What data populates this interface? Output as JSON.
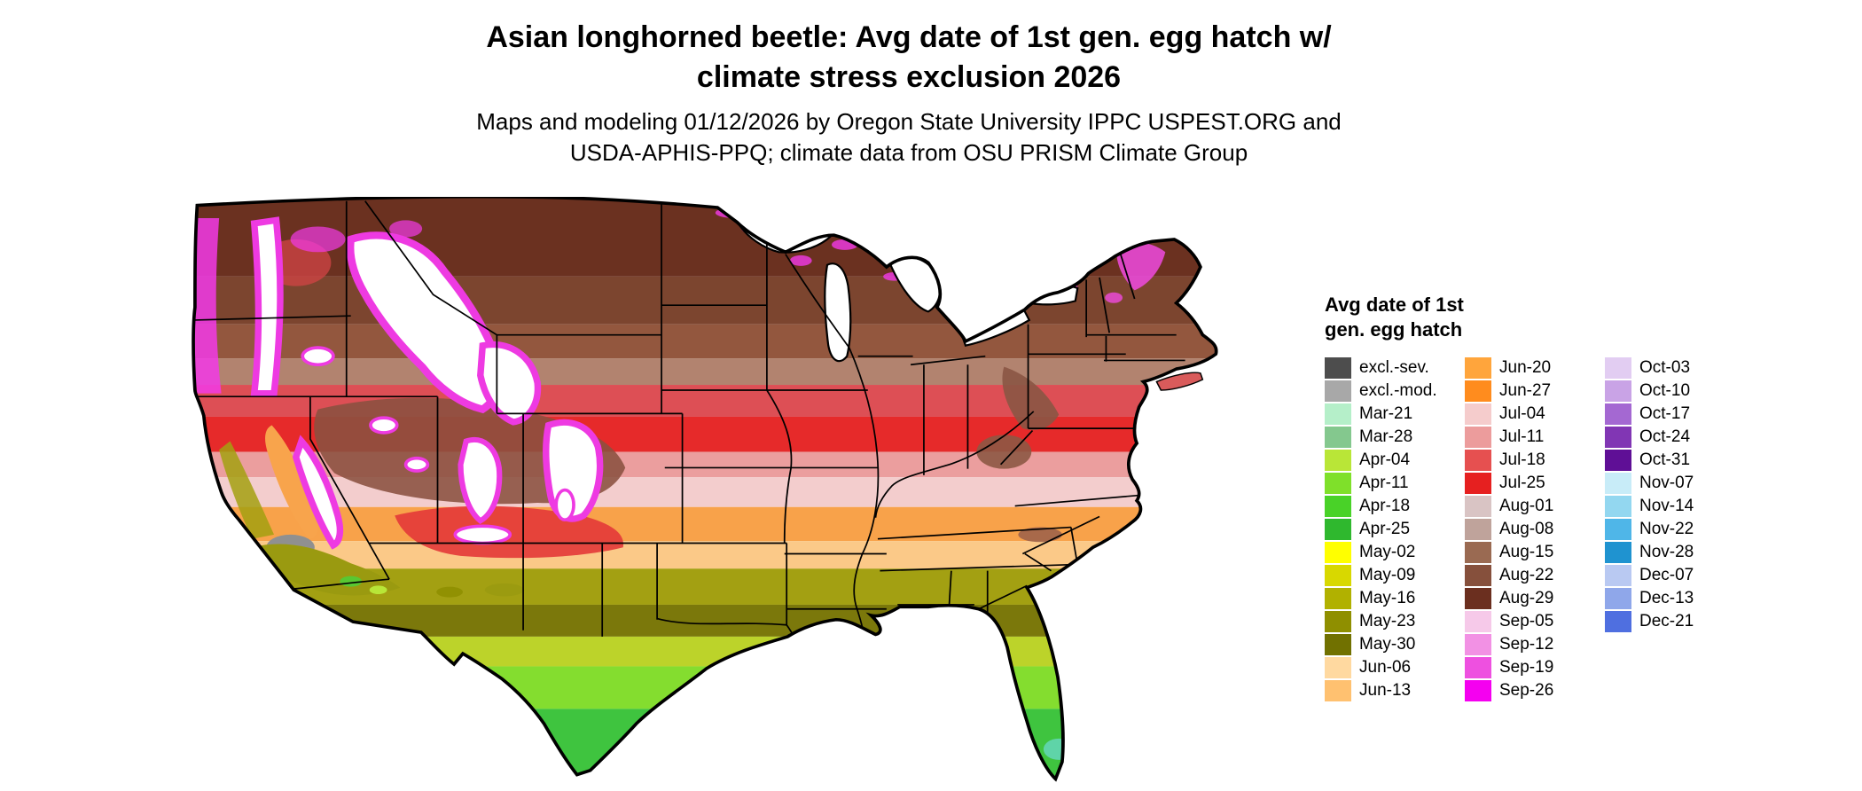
{
  "title": {
    "line1": "Asian longhorned beetle: Avg date of 1st gen. egg hatch w/",
    "line2": "climate stress exclusion 2026"
  },
  "subtitle": {
    "line1": "Maps and modeling 01/12/2026 by Oregon State University IPPC USPEST.ORG and",
    "line2": "USDA-APHIS-PPQ; climate data from OSU PRISM Climate Group"
  },
  "legend": {
    "title_line1": "Avg date of 1st",
    "title_line2": "gen. egg hatch",
    "columns": [
      {
        "entries": [
          {
            "label": "excl.-sev.",
            "color": "#4d4d4d"
          },
          {
            "label": "excl.-mod.",
            "color": "#a8a8a8"
          },
          {
            "label": "Mar-21",
            "color": "#b5efc9"
          },
          {
            "label": "Mar-28",
            "color": "#84c88e"
          },
          {
            "label": "Apr-04",
            "color": "#b9e637"
          },
          {
            "label": "Apr-11",
            "color": "#7fe02a"
          },
          {
            "label": "Apr-18",
            "color": "#49d228"
          },
          {
            "label": "Apr-25",
            "color": "#2fb82e"
          },
          {
            "label": "May-02",
            "color": "#ffff00"
          },
          {
            "label": "May-09",
            "color": "#d8d800"
          },
          {
            "label": "May-16",
            "color": "#b1b100"
          },
          {
            "label": "May-23",
            "color": "#8f8f00"
          },
          {
            "label": "May-30",
            "color": "#717100"
          },
          {
            "label": "Jun-06",
            "color": "#ffd9a0"
          },
          {
            "label": "Jun-13",
            "color": "#ffc170"
          }
        ]
      },
      {
        "entries": [
          {
            "label": "Jun-20",
            "color": "#ffa53c"
          },
          {
            "label": "Jun-27",
            "color": "#ff8c1e"
          },
          {
            "label": "Jul-04",
            "color": "#f5cccc"
          },
          {
            "label": "Jul-11",
            "color": "#ec9c9c"
          },
          {
            "label": "Jul-18",
            "color": "#e65050"
          },
          {
            "label": "Jul-25",
            "color": "#e62020"
          },
          {
            "label": "Aug-01",
            "color": "#d9c4c4"
          },
          {
            "label": "Aug-08",
            "color": "#bfa39b"
          },
          {
            "label": "Aug-15",
            "color": "#9a6a52"
          },
          {
            "label": "Aug-22",
            "color": "#86503c"
          },
          {
            "label": "Aug-29",
            "color": "#6b2f1f"
          },
          {
            "label": "Sep-05",
            "color": "#f6c9e9"
          },
          {
            "label": "Sep-12",
            "color": "#f291e4"
          },
          {
            "label": "Sep-19",
            "color": "#ee50e0"
          },
          {
            "label": "Sep-26",
            "color": "#f500f0"
          }
        ]
      },
      {
        "entries": [
          {
            "label": "Oct-03",
            "color": "#e2cdf2"
          },
          {
            "label": "Oct-10",
            "color": "#c9a3e6"
          },
          {
            "label": "Oct-17",
            "color": "#a468d2"
          },
          {
            "label": "Oct-24",
            "color": "#8136b4"
          },
          {
            "label": "Oct-31",
            "color": "#5f0f96"
          },
          {
            "label": "Nov-07",
            "color": "#c8ecf8"
          },
          {
            "label": "Nov-14",
            "color": "#93d7f0"
          },
          {
            "label": "Nov-22",
            "color": "#4fb6e8"
          },
          {
            "label": "Nov-28",
            "color": "#1f93d0"
          },
          {
            "label": "Dec-07",
            "color": "#b9c9f2"
          },
          {
            "label": "Dec-13",
            "color": "#8fa7ea"
          },
          {
            "label": "Dec-21",
            "color": "#4f6fe0"
          }
        ]
      }
    ]
  },
  "chart_data": {
    "type": "heatmap",
    "subtype": "choropleth-raster-map",
    "region": "Continental United States",
    "title": "Asian longhorned beetle: Avg date of 1st gen. egg hatch w/ climate stress exclusion 2026",
    "legend_title": "Avg date of 1st gen. egg hatch",
    "legend_position": "right",
    "classes": [
      {
        "label": "excl.-sev.",
        "color": "#4d4d4d"
      },
      {
        "label": "excl.-mod.",
        "color": "#a8a8a8"
      },
      {
        "label": "Mar-21",
        "color": "#b5efc9"
      },
      {
        "label": "Mar-28",
        "color": "#84c88e"
      },
      {
        "label": "Apr-04",
        "color": "#b9e637"
      },
      {
        "label": "Apr-11",
        "color": "#7fe02a"
      },
      {
        "label": "Apr-18",
        "color": "#49d228"
      },
      {
        "label": "Apr-25",
        "color": "#2fb82e"
      },
      {
        "label": "May-02",
        "color": "#ffff00"
      },
      {
        "label": "May-09",
        "color": "#d8d800"
      },
      {
        "label": "May-16",
        "color": "#b1b100"
      },
      {
        "label": "May-23",
        "color": "#8f8f00"
      },
      {
        "label": "May-30",
        "color": "#717100"
      },
      {
        "label": "Jun-06",
        "color": "#ffd9a0"
      },
      {
        "label": "Jun-13",
        "color": "#ffc170"
      },
      {
        "label": "Jun-20",
        "color": "#ffa53c"
      },
      {
        "label": "Jun-27",
        "color": "#ff8c1e"
      },
      {
        "label": "Jul-04",
        "color": "#f5cccc"
      },
      {
        "label": "Jul-11",
        "color": "#ec9c9c"
      },
      {
        "label": "Jul-18",
        "color": "#e65050"
      },
      {
        "label": "Jul-25",
        "color": "#e62020"
      },
      {
        "label": "Aug-01",
        "color": "#d9c4c4"
      },
      {
        "label": "Aug-08",
        "color": "#bfa39b"
      },
      {
        "label": "Aug-15",
        "color": "#9a6a52"
      },
      {
        "label": "Aug-22",
        "color": "#86503c"
      },
      {
        "label": "Aug-29",
        "color": "#6b2f1f"
      },
      {
        "label": "Sep-05",
        "color": "#f6c9e9"
      },
      {
        "label": "Sep-12",
        "color": "#f291e4"
      },
      {
        "label": "Sep-19",
        "color": "#ee50e0"
      },
      {
        "label": "Sep-26",
        "color": "#f500f0"
      },
      {
        "label": "Oct-03",
        "color": "#e2cdf2"
      },
      {
        "label": "Oct-10",
        "color": "#c9a3e6"
      },
      {
        "label": "Oct-17",
        "color": "#a468d2"
      },
      {
        "label": "Oct-24",
        "color": "#8136b4"
      },
      {
        "label": "Oct-31",
        "color": "#5f0f96"
      },
      {
        "label": "Nov-07",
        "color": "#c8ecf8"
      },
      {
        "label": "Nov-14",
        "color": "#93d7f0"
      },
      {
        "label": "Nov-22",
        "color": "#4fb6e8"
      },
      {
        "label": "Nov-28",
        "color": "#1f93d0"
      },
      {
        "label": "Dec-07",
        "color": "#b9c9f2"
      },
      {
        "label": "Dec-13",
        "color": "#8fa7ea"
      },
      {
        "label": "Dec-21",
        "color": "#4f6fe0"
      }
    ],
    "pattern_summary": "Hatch dates grade from late August (dark brown) across the northern tier, through July (red/pink) in the central Midwest and Northeast, June (orange) across the mid-South, May (olive) along the Gulf states, to April (green) in south Texas and Florida; mountain areas of the West show late-season magenta/white and excluded gray zones."
  }
}
